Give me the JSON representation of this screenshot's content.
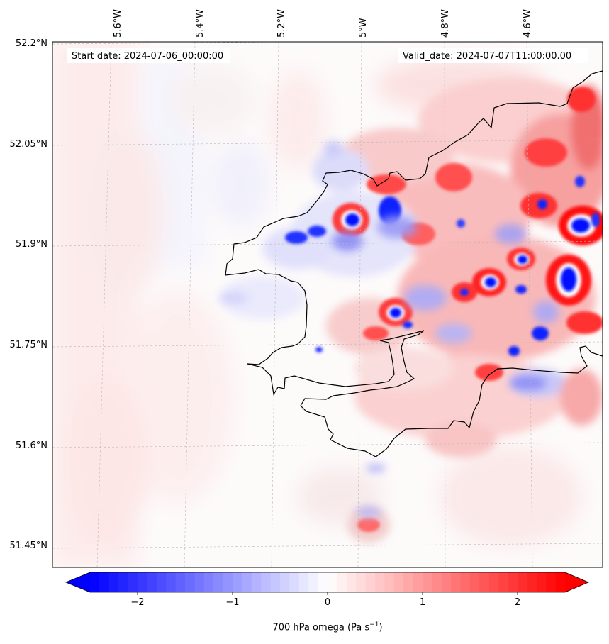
{
  "map": {
    "start_label": "Start date: 2024-07-06_00:00:00",
    "valid_label": "Valid_date: 2024-07-07T11:00:00.00",
    "lon_labels": [
      "5.6°W",
      "5.4°W",
      "5.2°W",
      "5°W",
      "4.8°W",
      "4.6°W"
    ],
    "lat_labels": [
      "52.2°N",
      "52.05°N",
      "51.9°N",
      "51.75°N",
      "51.6°N",
      "51.45°N"
    ]
  },
  "colorbar": {
    "label_prefix": "700 hPa omega (Pa s",
    "label_exp": "−1",
    "label_suffix": ")",
    "min": -2.5,
    "max": 2.5,
    "ticks": [
      "−2",
      "−1",
      "0",
      "1",
      "2"
    ],
    "tick_values": [
      -2,
      -1,
      0,
      1,
      2
    ],
    "colors": {
      "low": "#0000ff",
      "mid": "#ffffff",
      "high": "#ff0000"
    },
    "extend": "both"
  },
  "icons": {
    "coastline": "coastline-line",
    "gridlines": "dashed-graticule"
  }
}
